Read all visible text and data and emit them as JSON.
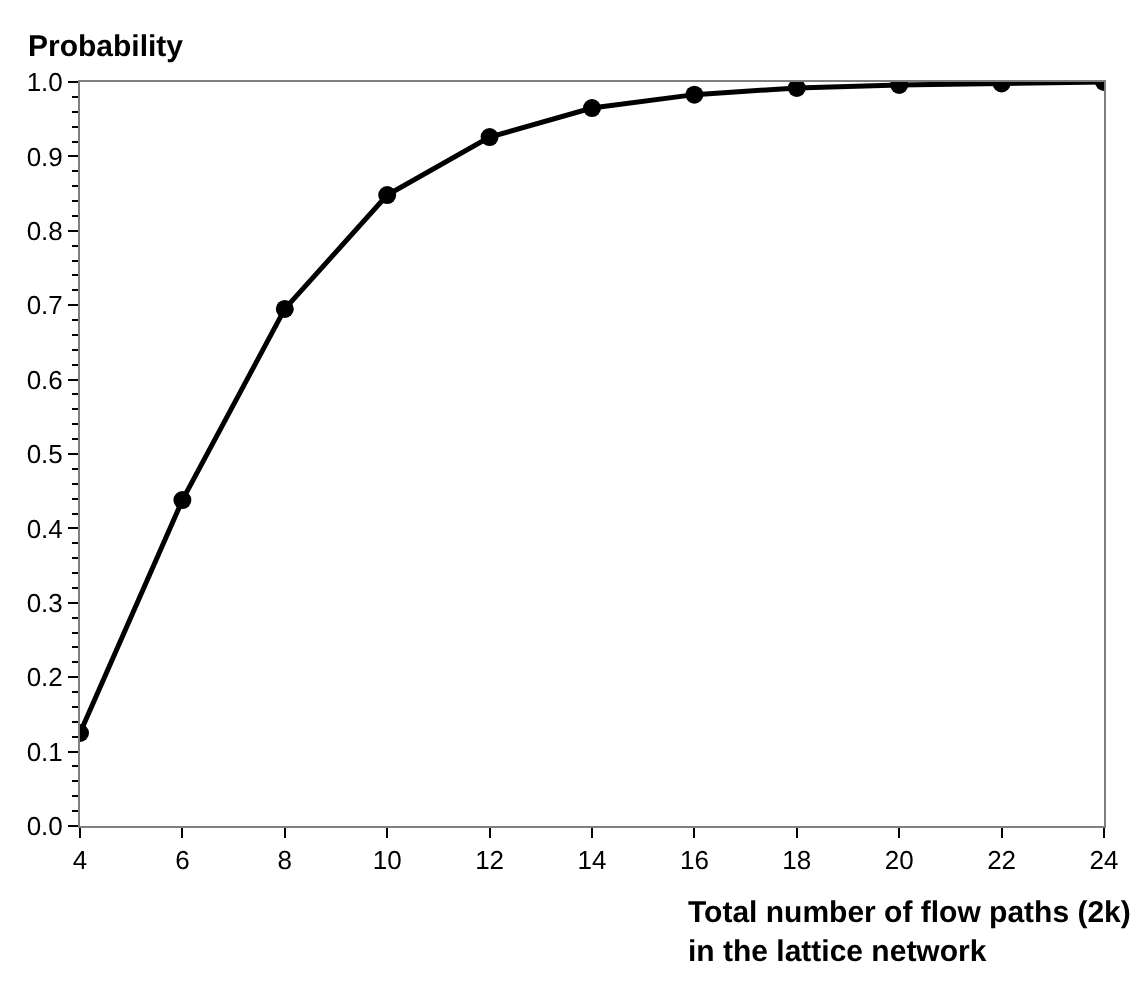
{
  "chart_data": {
    "type": "line",
    "ylabel": "Probability",
    "xlabel": "Total number of flow paths (2k)\nin the lattice network",
    "x": [
      4,
      6,
      8,
      10,
      12,
      14,
      16,
      18,
      20,
      22,
      24
    ],
    "series": [
      {
        "color": "#000000",
        "values": [
          0.125,
          0.438,
          0.695,
          0.848,
          0.926,
          0.965,
          0.983,
          0.992,
          0.996,
          0.998,
          1.0
        ]
      }
    ],
    "xlim": [
      4,
      24
    ],
    "xticks": [
      4,
      6,
      8,
      10,
      12,
      14,
      16,
      18,
      20,
      22,
      24
    ],
    "ylim": [
      0,
      1
    ],
    "yticks": [
      {
        "value": 0,
        "label": "0.0"
      },
      0.1,
      0.2,
      0.3,
      0.4,
      0.5,
      0.6,
      0.7,
      0.8,
      0.9,
      {
        "value": 1,
        "label": "1.0"
      }
    ],
    "marker": "circle",
    "line_style": "solid"
  }
}
